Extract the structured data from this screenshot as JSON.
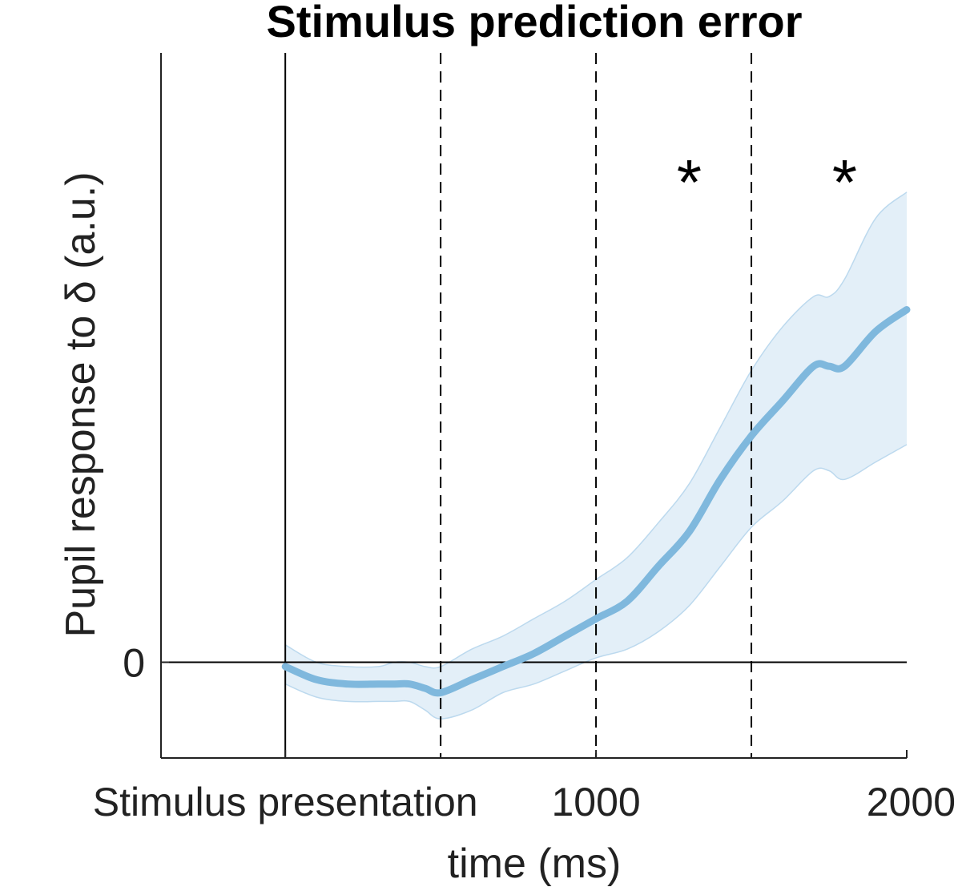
{
  "chart_data": {
    "type": "line",
    "title": "Stimulus prediction error",
    "xlabel": "time (ms)",
    "ylabel": "Pupil response to δ (a.u.)",
    "xlim": [
      -400,
      2000
    ],
    "ylim": [
      -0.22,
      1.4
    ],
    "x_ticks": [
      {
        "value": 0,
        "label": "Stimulus presentation"
      },
      {
        "value": 1000,
        "label": "1000"
      },
      {
        "value": 2000,
        "label": "2000"
      }
    ],
    "y_ticks": [
      {
        "value": 0,
        "label": "0"
      }
    ],
    "zero_line": 0,
    "dashed_lines": [
      500,
      1000,
      1500
    ],
    "solid_vline": 0,
    "significance_markers": [
      {
        "x": 1300,
        "label": "*"
      },
      {
        "x": 1800,
        "label": "*"
      }
    ],
    "series": [
      {
        "color": "#7fb8dd",
        "band_color": "#e3eff8",
        "band_edge_color": "#bcd9ee",
        "x": [
          0,
          100,
          200,
          300,
          350,
          400,
          450,
          500,
          600,
          700,
          800,
          900,
          1000,
          1100,
          1200,
          1300,
          1400,
          1500,
          1600,
          1700,
          1750,
          1800,
          1900,
          2000
        ],
        "y": [
          -0.01,
          -0.04,
          -0.05,
          -0.05,
          -0.05,
          -0.05,
          -0.06,
          -0.07,
          -0.04,
          -0.01,
          0.02,
          0.06,
          0.1,
          0.14,
          0.22,
          0.3,
          0.42,
          0.52,
          0.6,
          0.68,
          0.68,
          0.68,
          0.76,
          0.81
        ],
        "lower": [
          -0.05,
          -0.08,
          -0.09,
          -0.09,
          -0.09,
          -0.09,
          -0.11,
          -0.13,
          -0.11,
          -0.07,
          -0.05,
          -0.02,
          0.01,
          0.03,
          0.07,
          0.13,
          0.22,
          0.31,
          0.37,
          0.44,
          0.44,
          0.42,
          0.46,
          0.5
        ],
        "upper": [
          0.04,
          0.0,
          -0.01,
          -0.01,
          0.0,
          0.0,
          -0.01,
          -0.01,
          0.03,
          0.06,
          0.1,
          0.14,
          0.19,
          0.24,
          0.32,
          0.41,
          0.54,
          0.67,
          0.77,
          0.84,
          0.84,
          0.88,
          1.02,
          1.08
        ]
      }
    ]
  }
}
